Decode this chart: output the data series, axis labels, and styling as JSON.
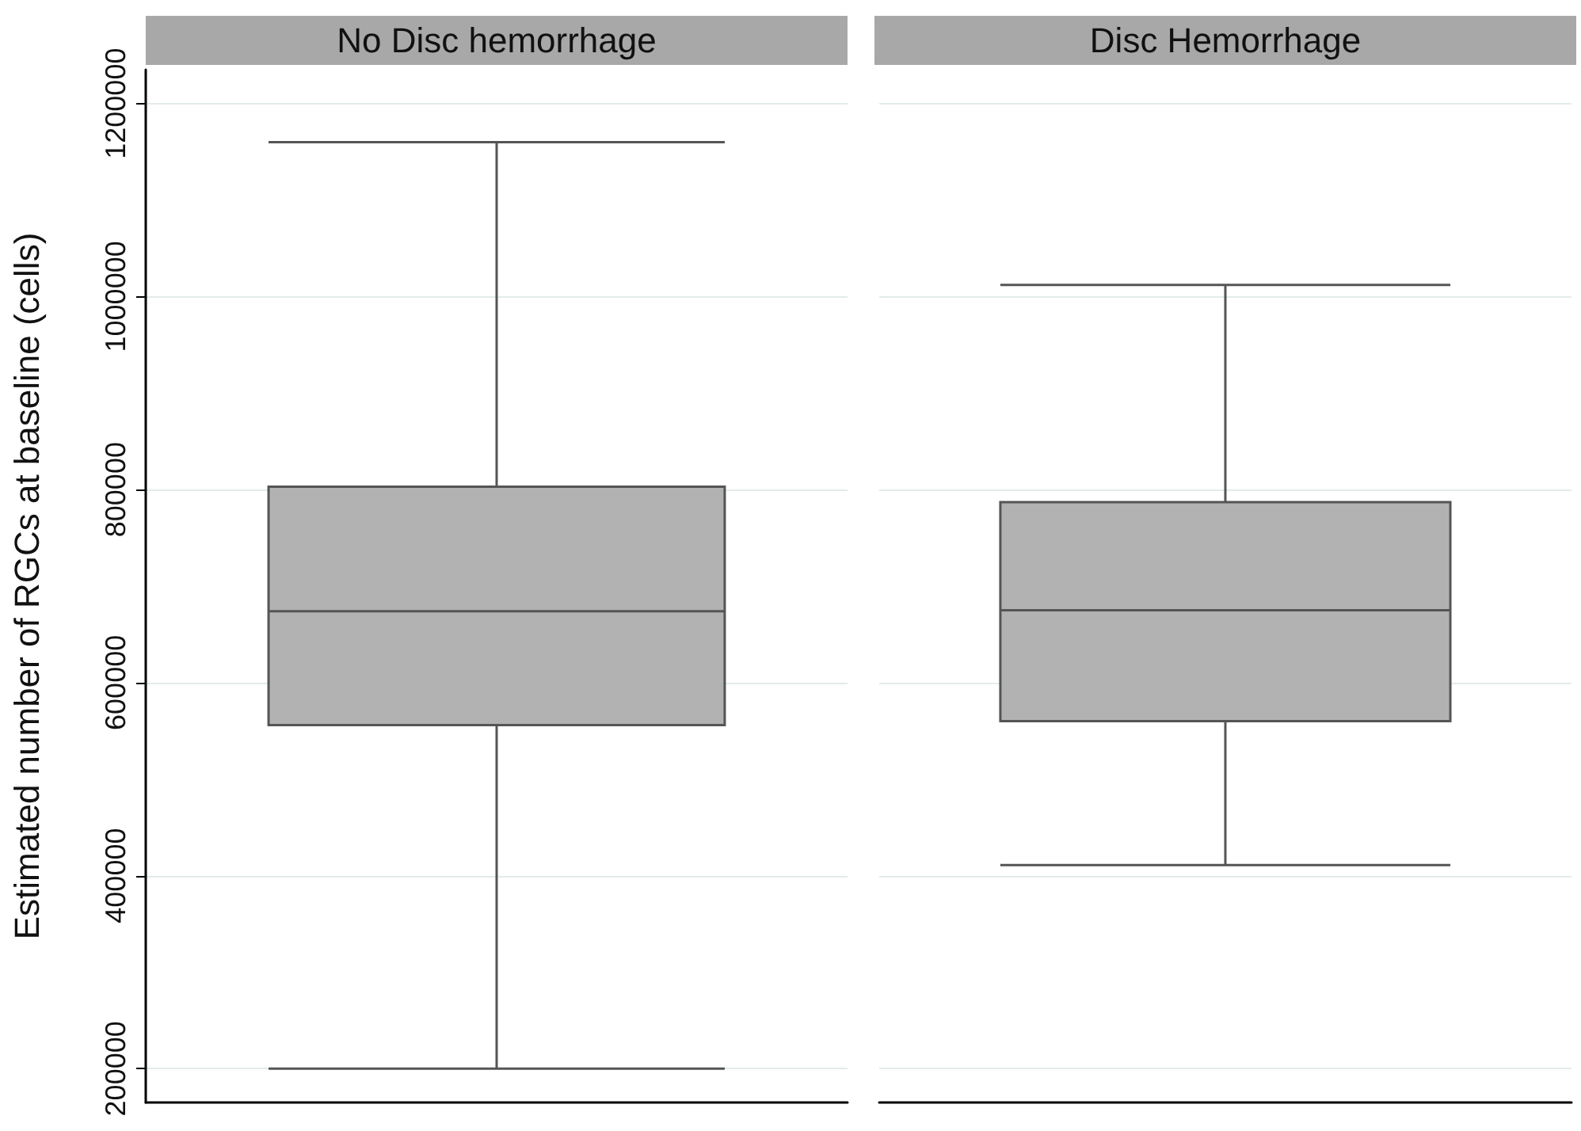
{
  "chart_data": {
    "type": "box",
    "ylabel": "Estimated number of RGCs at baseline (cells)",
    "categories": [
      "No Disc hemorrhage",
      "Disc Hemorrhage"
    ],
    "color": "#b2b2b2",
    "boxes": [
      {
        "low": 200000,
        "q1": 556000,
        "median": 674000,
        "q3": 803000,
        "high": 1160000
      },
      {
        "low": 411000,
        "q1": 560000,
        "median": 675000,
        "q3": 787000,
        "high": 1012000
      }
    ],
    "ylim": [
      165000,
      1235000
    ],
    "yticks": [
      200000,
      400000,
      600000,
      800000,
      1000000,
      1200000
    ],
    "grid": "y"
  }
}
